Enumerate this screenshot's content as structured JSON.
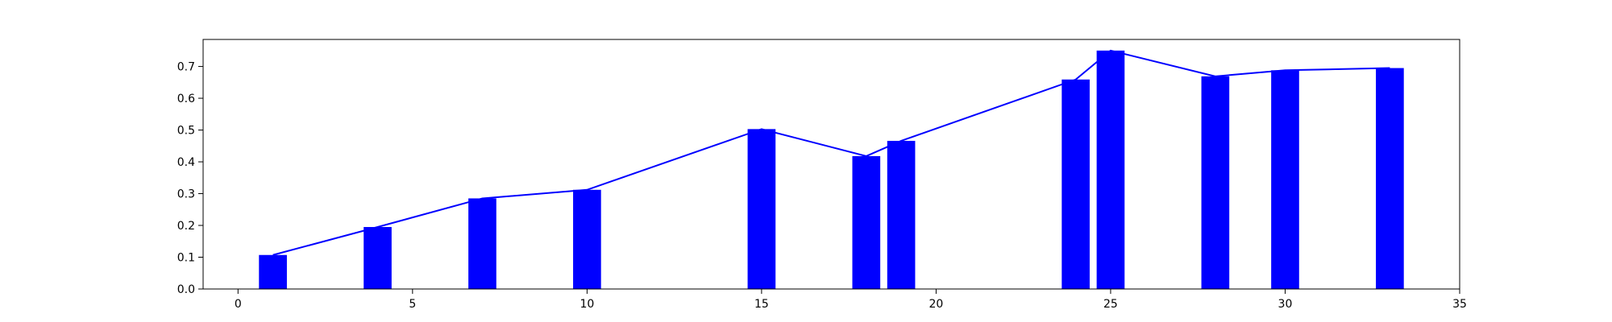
{
  "chart_data": {
    "type": "bar",
    "title": "",
    "xlabel": "",
    "ylabel": "",
    "xlim": [
      -1,
      35
    ],
    "ylim": [
      0,
      0.785
    ],
    "grid": false,
    "color": "#0000ff",
    "bar_width": 0.8,
    "x_ticks": [
      0,
      5,
      10,
      15,
      20,
      25,
      30,
      35
    ],
    "y_ticks": [
      0.0,
      0.1,
      0.2,
      0.3,
      0.4,
      0.5,
      0.6,
      0.7
    ],
    "x_tick_labels": [
      "0",
      "5",
      "10",
      "15",
      "20",
      "25",
      "30",
      "35"
    ],
    "y_tick_labels": [
      "0.0",
      "0.1",
      "0.2",
      "0.3",
      "0.4",
      "0.5",
      "0.6",
      "0.7"
    ],
    "series": [
      {
        "type": "bar",
        "x": [
          1,
          4,
          7,
          10,
          15,
          18,
          19,
          24,
          25,
          28,
          30,
          33
        ],
        "values": [
          0.107,
          0.195,
          0.285,
          0.312,
          0.503,
          0.418,
          0.466,
          0.659,
          0.75,
          0.669,
          0.688,
          0.695
        ]
      },
      {
        "type": "line",
        "x": [
          1,
          4,
          7,
          10,
          15,
          18,
          19,
          24,
          25,
          28,
          30,
          33
        ],
        "values": [
          0.107,
          0.195,
          0.285,
          0.312,
          0.503,
          0.418,
          0.466,
          0.659,
          0.75,
          0.669,
          0.688,
          0.695
        ]
      }
    ]
  }
}
